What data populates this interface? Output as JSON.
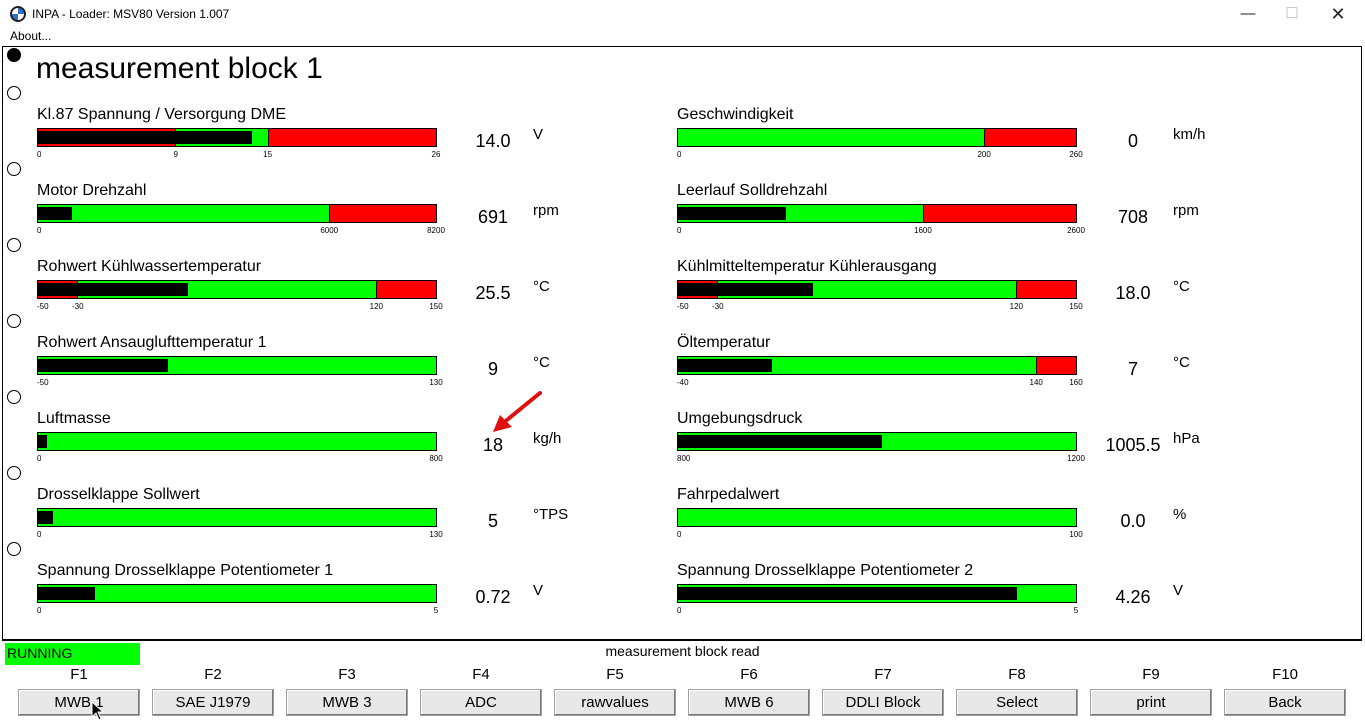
{
  "window": {
    "title": "INPA - Loader:  MSV80 Version 1.007",
    "minimize": "—",
    "maximize": "☐",
    "close": "✕"
  },
  "menu": {
    "about": "About..."
  },
  "page_title": "measurement block 1",
  "measurements": [
    {
      "label": "Kl.87 Spannung / Versorgung DME",
      "value": "14.0",
      "unit": "V",
      "ticks": [
        "0",
        "9",
        "15",
        "26"
      ],
      "min": 0,
      "max": 26,
      "reading": 14.0,
      "green_from": 9,
      "green_to": 15,
      "indicator": "split-black"
    },
    {
      "label": "Geschwindigkeit",
      "value": "0",
      "unit": "km/h",
      "ticks": [
        "0",
        "200",
        "260"
      ],
      "min": 0,
      "max": 260,
      "reading": 0,
      "green_from": 0,
      "green_to": 200,
      "indicator": "black"
    },
    {
      "label": "Motor Drehzahl",
      "value": "691",
      "unit": "rpm",
      "ticks": [
        "0",
        "6000",
        "8200"
      ],
      "min": 0,
      "max": 8200,
      "reading": 691,
      "green_from": 0,
      "green_to": 6000,
      "indicator": "black"
    },
    {
      "label": "Leerlauf Solldrehzahl",
      "value": "708",
      "unit": "rpm",
      "ticks": [
        "0",
        "1600",
        "2600"
      ],
      "min": 0,
      "max": 2600,
      "reading": 708,
      "green_from": 0,
      "green_to": 1600,
      "indicator": "black"
    },
    {
      "label": "Rohwert Kühlwassertemperatur",
      "value": "25.5",
      "unit": "°C",
      "ticks": [
        "-50",
        "-30",
        "120",
        "150"
      ],
      "min": -50,
      "max": 150,
      "reading": 25.5,
      "green_from": -30,
      "green_to": 120,
      "indicator": "split-black"
    },
    {
      "label": "Kühlmitteltemperatur Kühlerausgang",
      "value": "18.0",
      "unit": "°C",
      "ticks": [
        "-50",
        "-30",
        "120",
        "150"
      ],
      "min": -50,
      "max": 150,
      "reading": 18.0,
      "green_from": -30,
      "green_to": 120,
      "indicator": "split-black"
    },
    {
      "label": "Rohwert Ansauglufttemperatur 1",
      "value": "9",
      "unit": "°C",
      "ticks": [
        "-50",
        "130"
      ],
      "min": -50,
      "max": 130,
      "reading": 9,
      "green_from": -50,
      "green_to": 130,
      "indicator": "black"
    },
    {
      "label": "Öltemperatur",
      "value": "7",
      "unit": "°C",
      "ticks": [
        "-40",
        "140",
        "160"
      ],
      "min": -40,
      "max": 160,
      "reading": 7,
      "green_from": -40,
      "green_to": 140,
      "indicator": "black"
    },
    {
      "label": "Luftmasse",
      "value": "18",
      "unit": "kg/h",
      "ticks": [
        "0",
        "800"
      ],
      "min": 0,
      "max": 800,
      "reading": 18,
      "green_from": 0,
      "green_to": 800,
      "indicator": "black"
    },
    {
      "label": "Umgebungsdruck",
      "value": "1005.5",
      "unit": "hPa",
      "ticks": [
        "800",
        "1200"
      ],
      "min": 800,
      "max": 1200,
      "reading": 1005.5,
      "green_from": 800,
      "green_to": 1200,
      "indicator": "black"
    },
    {
      "label": "Drosselklappe Sollwert",
      "value": "5",
      "unit": "°TPS",
      "ticks": [
        "0",
        "130"
      ],
      "min": 0,
      "max": 130,
      "reading": 5,
      "green_from": 0,
      "green_to": 130,
      "indicator": "black"
    },
    {
      "label": "Fahrpedalwert",
      "value": "0.0",
      "unit": "%",
      "ticks": [
        "0",
        "100"
      ],
      "min": 0,
      "max": 100,
      "reading": 0,
      "green_from": 0,
      "green_to": 100,
      "indicator": "black"
    },
    {
      "label": "Spannung Drosselklappe Potentiometer 1",
      "value": "0.72",
      "unit": "V",
      "ticks": [
        "0",
        "5"
      ],
      "min": 0,
      "max": 5,
      "reading": 0.72,
      "green_from": 0,
      "green_to": 5,
      "indicator": "black"
    },
    {
      "label": "Spannung Drosselklappe Potentiometer 2",
      "value": "4.26",
      "unit": "V",
      "ticks": [
        "0",
        "5"
      ],
      "min": 0,
      "max": 5,
      "reading": 4.26,
      "green_from": 0,
      "green_to": 5,
      "indicator": "black"
    }
  ],
  "status": {
    "running": "RUNNING",
    "message": "measurement block read"
  },
  "fkeys": [
    {
      "key": "F1",
      "label": "MWB 1"
    },
    {
      "key": "F2",
      "label": "SAE J1979"
    },
    {
      "key": "F3",
      "label": "MWB 3"
    },
    {
      "key": "F4",
      "label": "ADC"
    },
    {
      "key": "F5",
      "label": "rawvalues"
    },
    {
      "key": "F6",
      "label": "MWB 6"
    },
    {
      "key": "F7",
      "label": "DDLI Block"
    },
    {
      "key": "F8",
      "label": "Select"
    },
    {
      "key": "F9",
      "label": "print"
    },
    {
      "key": "F10",
      "label": "Back"
    }
  ],
  "colors": {
    "ok": "#00ff00",
    "alarm": "#ff0000",
    "indicator": "#000000"
  }
}
